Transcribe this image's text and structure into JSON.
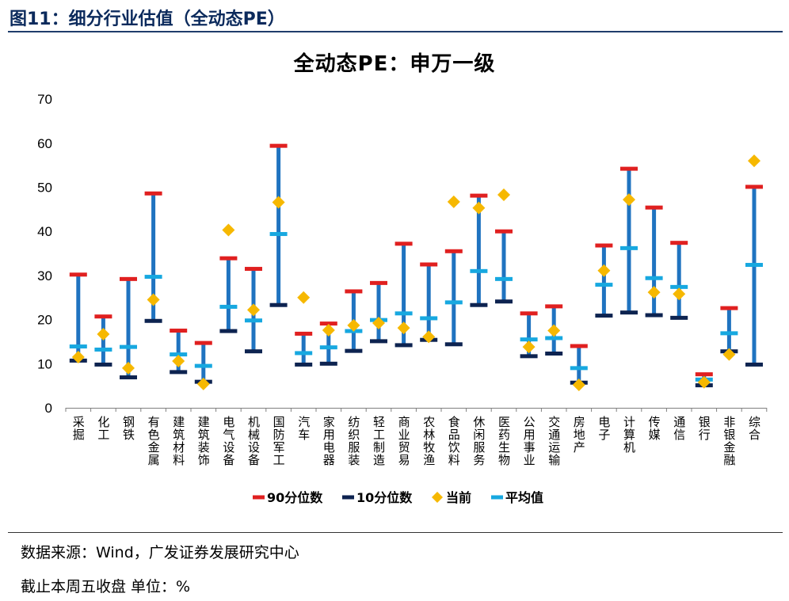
{
  "header": {
    "figure_label": "图11：细分行业估值（全动态PE）"
  },
  "footer": {
    "source": "数据来源：Wind，广发证券发展研究中心",
    "unit_note": "截止本周五收盘 单位：%"
  },
  "colors": {
    "range": "#1f73c0",
    "p90": "#e02020",
    "p10": "#0d2350",
    "current": "#f6b800",
    "mean": "#17a8e0"
  },
  "chart_data": {
    "type": "error-bar",
    "title": "全动态PE：申万一级",
    "ylim": [
      0,
      70
    ],
    "yticks": [
      0,
      10,
      20,
      30,
      40,
      50,
      60,
      70
    ],
    "grid": false,
    "legend_position": "bottom",
    "categories": [
      "采掘",
      "化工",
      "钢铁",
      "有色金属",
      "建筑材料",
      "建筑装饰",
      "电气设备",
      "机械设备",
      "国防军工",
      "汽车",
      "家用电器",
      "纺织服装",
      "轻工制造",
      "商业贸易",
      "农林牧渔",
      "食品饮料",
      "休闲服务",
      "医药生物",
      "公用事业",
      "交通运输",
      "房地产",
      "电子",
      "计算机",
      "传媒",
      "通信",
      "银行",
      "非银金融",
      "综合"
    ],
    "series": [
      {
        "name": "90分位数",
        "values": [
          30.2,
          20.7,
          29.2,
          48.6,
          17.5,
          14.7,
          33.9,
          31.5,
          59.4,
          16.8,
          19.1,
          26.4,
          28.3,
          37.2,
          32.5,
          35.5,
          48.1,
          40.0,
          21.4,
          23.0,
          14.0,
          36.8,
          54.2,
          45.4,
          37.4,
          7.6,
          22.6,
          50.1
        ]
      },
      {
        "name": "10分位数",
        "values": [
          10.7,
          9.8,
          6.9,
          19.7,
          8.1,
          5.9,
          17.4,
          12.8,
          23.3,
          9.8,
          10.0,
          12.9,
          15.1,
          14.2,
          15.4,
          14.4,
          23.3,
          24.1,
          11.7,
          12.3,
          5.7,
          20.9,
          21.6,
          21.0,
          20.4,
          5.1,
          12.8,
          9.8
        ]
      },
      {
        "name": "当前",
        "values": [
          11.5,
          16.7,
          9.0,
          24.5,
          10.6,
          5.4,
          40.3,
          22.2,
          46.6,
          25.0,
          17.6,
          18.7,
          19.2,
          18.1,
          16.1,
          46.7,
          45.3,
          48.3,
          13.8,
          17.5,
          5.2,
          31.1,
          47.2,
          26.2,
          25.8,
          5.8,
          12.1,
          56.0
        ]
      },
      {
        "name": "平均值",
        "values": [
          13.9,
          13.2,
          13.8,
          29.7,
          12.1,
          9.5,
          22.9,
          19.8,
          39.4,
          12.4,
          13.7,
          17.4,
          19.9,
          21.4,
          20.3,
          23.9,
          31.0,
          29.2,
          15.5,
          15.8,
          9.0,
          27.9,
          36.2,
          29.4,
          27.4,
          6.4,
          16.9,
          32.4
        ]
      }
    ]
  }
}
